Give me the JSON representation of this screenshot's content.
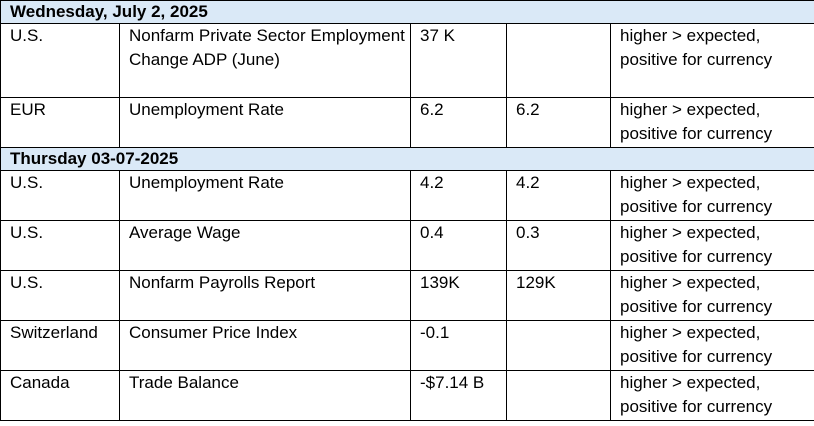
{
  "sections": [
    {
      "title": "Wednesday, July 2, 2025",
      "rows": [
        {
          "country": "U.S.",
          "indicator": "Nonfarm Private Sector Employment Change ADP (June)",
          "actual": "37 K",
          "forecast": "",
          "impact": "higher > expected, positive for currency"
        },
        {
          "country": "EUR",
          "indicator": "Unemployment Rate",
          "actual": "6.2",
          "forecast": "6.2",
          "impact": "higher > expected, positive for currency"
        }
      ]
    },
    {
      "title": "Thursday 03-07-2025",
      "rows": [
        {
          "country": "U.S.",
          "indicator": "Unemployment Rate",
          "actual": "4.2",
          "forecast": "4.2",
          "impact": "higher > expected, positive for currency"
        },
        {
          "country": "U.S.",
          "indicator": "Average Wage",
          "actual": "0.4",
          "forecast": "0.3",
          "impact": "higher > expected, positive for currency"
        },
        {
          "country": "U.S.",
          "indicator": "Nonfarm Payrolls Report",
          "actual": "139K",
          "forecast": "129K",
          "impact": "higher > expected, positive for currency"
        },
        {
          "country": "Switzerland",
          "indicator": "Consumer Price Index",
          "actual": "-0.1",
          "forecast": "",
          "impact": "higher > expected, positive for currency"
        },
        {
          "country": "Canada",
          "indicator": "Trade Balance",
          "actual": "-$7.14 B",
          "forecast": "",
          "impact": "higher > expected, positive for currency"
        }
      ]
    }
  ]
}
